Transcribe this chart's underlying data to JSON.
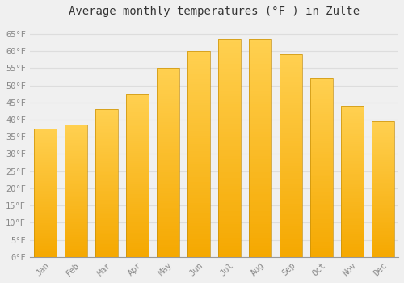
{
  "title": "Average monthly temperatures (°F ) in Zulte",
  "months": [
    "Jan",
    "Feb",
    "Mar",
    "Apr",
    "May",
    "Jun",
    "Jul",
    "Aug",
    "Sep",
    "Oct",
    "Nov",
    "Dec"
  ],
  "values": [
    37.5,
    38.5,
    43.0,
    47.5,
    55.0,
    60.0,
    63.5,
    63.5,
    59.0,
    52.0,
    44.0,
    39.5
  ],
  "bar_color_bottom": "#F5A800",
  "bar_color_top": "#FFD040",
  "bar_edge_color": "#C8900A",
  "background_color": "#F0F0F0",
  "grid_color": "#DDDDDD",
  "ylim": [
    0,
    68
  ],
  "yticks": [
    0,
    5,
    10,
    15,
    20,
    25,
    30,
    35,
    40,
    45,
    50,
    55,
    60,
    65
  ],
  "ytick_labels": [
    "0°F",
    "5°F",
    "10°F",
    "15°F",
    "20°F",
    "25°F",
    "30°F",
    "35°F",
    "40°F",
    "45°F",
    "50°F",
    "55°F",
    "60°F",
    "65°F"
  ],
  "title_fontsize": 10,
  "tick_fontsize": 7.5,
  "font_family": "monospace",
  "bar_width": 0.75
}
